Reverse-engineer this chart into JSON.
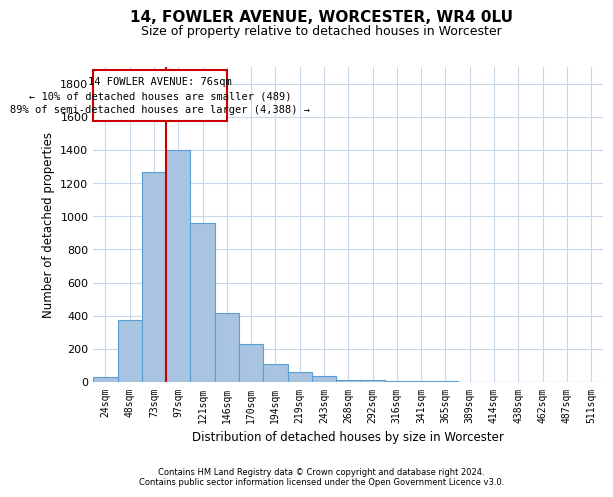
{
  "title": "14, FOWLER AVENUE, WORCESTER, WR4 0LU",
  "subtitle": "Size of property relative to detached houses in Worcester",
  "xlabel": "Distribution of detached houses by size in Worcester",
  "ylabel": "Number of detached properties",
  "footer_line1": "Contains HM Land Registry data © Crown copyright and database right 2024.",
  "footer_line2": "Contains public sector information licensed under the Open Government Licence v3.0.",
  "bar_color": "#a8c4e0",
  "bar_edge_color": "#5a9fd4",
  "categories": [
    "24sqm",
    "48sqm",
    "73sqm",
    "97sqm",
    "121sqm",
    "146sqm",
    "170sqm",
    "194sqm",
    "219sqm",
    "243sqm",
    "268sqm",
    "292sqm",
    "316sqm",
    "341sqm",
    "365sqm",
    "389sqm",
    "414sqm",
    "438sqm",
    "462sqm",
    "487sqm",
    "511sqm"
  ],
  "values": [
    30,
    375,
    1265,
    1400,
    960,
    415,
    230,
    110,
    60,
    35,
    15,
    10,
    5,
    5,
    5,
    3,
    3,
    2,
    2,
    1,
    1
  ],
  "property_line_x": 2.5,
  "annotation_text_line1": "14 FOWLER AVENUE: 76sqm",
  "annotation_text_line2": "← 10% of detached houses are smaller (489)",
  "annotation_text_line3": "89% of semi-detached houses are larger (4,388) →",
  "red_line_color": "#cc0000",
  "annotation_box_color": "#ffffff",
  "annotation_box_edge_color": "#cc0000",
  "ylim": [
    0,
    1900
  ],
  "grid_color": "#c8d8e8",
  "background_color": "#ffffff",
  "title_fontsize": 11,
  "subtitle_fontsize": 9,
  "yticks": [
    0,
    200,
    400,
    600,
    800,
    1000,
    1200,
    1400,
    1600,
    1800
  ]
}
